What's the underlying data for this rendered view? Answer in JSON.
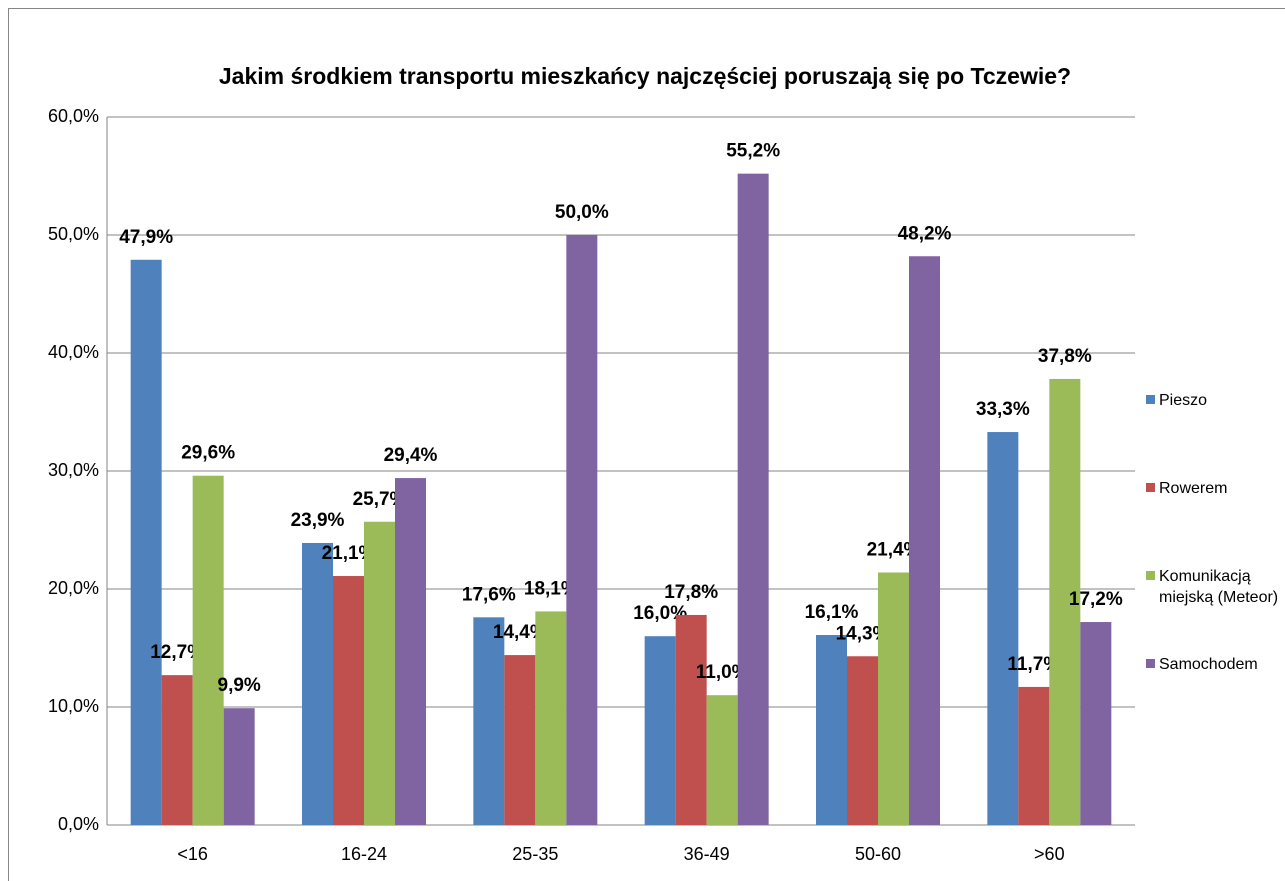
{
  "chart_data": {
    "type": "bar",
    "title": "Jakim środkiem transportu mieszkańcy najczęściej poruszają się po Tczewie?",
    "categories": [
      "<16",
      "16-24",
      "25-35",
      "36-49",
      "50-60",
      ">60"
    ],
    "series": [
      {
        "name": "Pieszo",
        "color": "#4f81bd",
        "values": [
          47.9,
          23.9,
          17.6,
          16.0,
          16.1,
          33.3
        ],
        "value_labels": [
          "47,9%",
          "23,9%",
          "17,6%",
          "16,0%",
          "16,1%",
          "33,3%"
        ]
      },
      {
        "name": "Rowerem",
        "color": "#c0504d",
        "values": [
          12.7,
          21.1,
          14.4,
          17.8,
          14.3,
          11.7
        ],
        "value_labels": [
          "12,7%",
          "21,1%",
          "14,4%",
          "17,8%",
          "14,3%",
          "11,7%"
        ]
      },
      {
        "name": "Komunikacją miejską (Meteor)",
        "color": "#9bbb59",
        "values": [
          29.6,
          25.7,
          18.1,
          11.0,
          21.4,
          37.8
        ],
        "value_labels": [
          "29,6%",
          "25,7%",
          "18,1%",
          "11,0%",
          "21,4%",
          "37,8%"
        ]
      },
      {
        "name": "Samochodem",
        "color": "#8064a2",
        "values": [
          9.9,
          29.4,
          50.0,
          55.2,
          48.2,
          17.2
        ],
        "value_labels": [
          "9,9%",
          "29,4%",
          "50,0%",
          "55,2%",
          "48,2%",
          "17,2%"
        ]
      }
    ],
    "ylim": [
      0,
      60
    ],
    "yticks": [
      {
        "value": 0,
        "label": "0,0%"
      },
      {
        "value": 10,
        "label": "10,0%"
      },
      {
        "value": 20,
        "label": "20,0%"
      },
      {
        "value": 30,
        "label": "30,0%"
      },
      {
        "value": 40,
        "label": "40,0%"
      },
      {
        "value": 50,
        "label": "50,0%"
      },
      {
        "value": 60,
        "label": "60,0%"
      }
    ],
    "grid": true,
    "legend": "right"
  }
}
